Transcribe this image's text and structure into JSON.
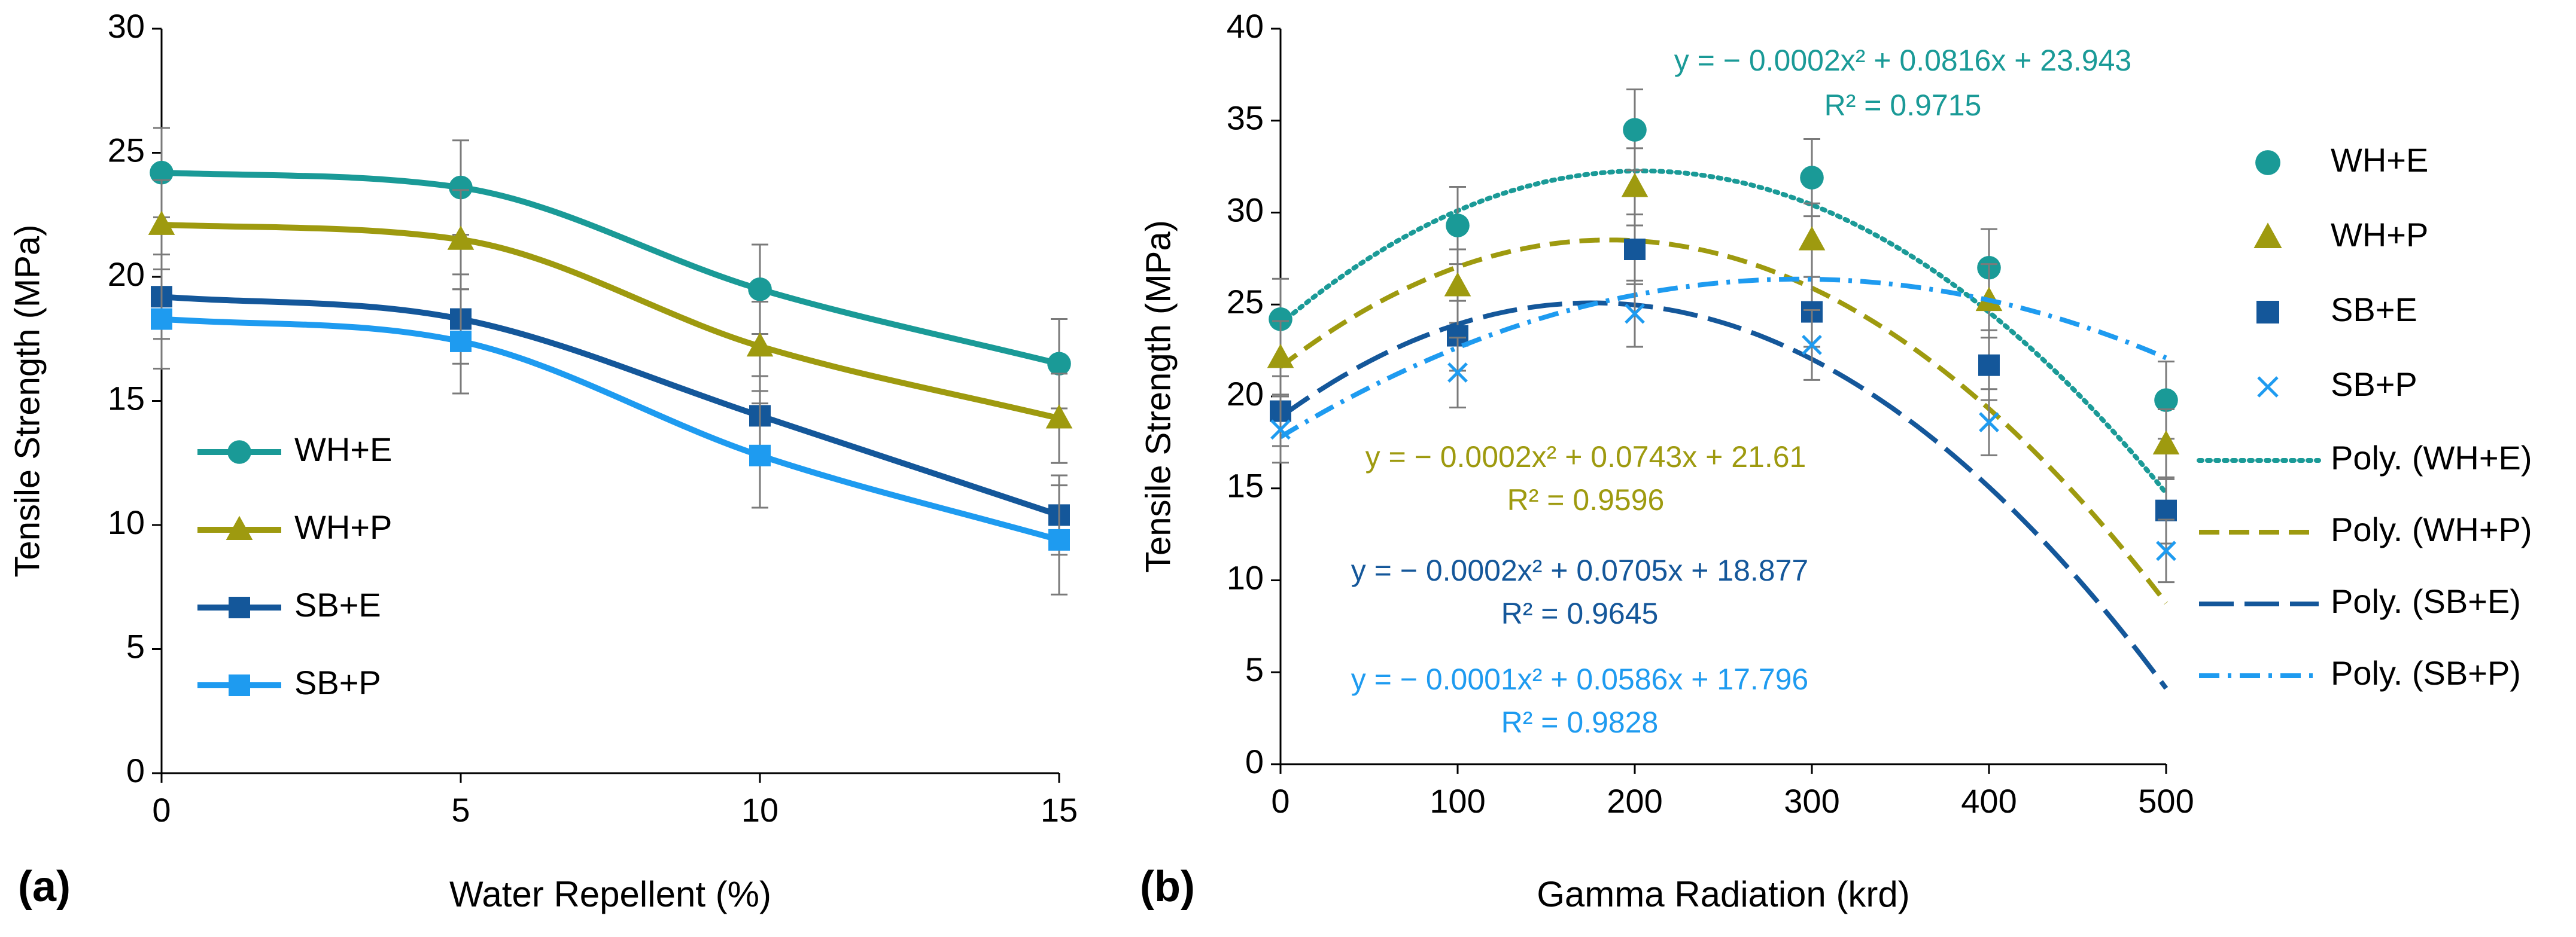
{
  "colors": {
    "wh_e": "#1A9A97",
    "wh_p": "#9E9A0F",
    "sb_e": "#14579A",
    "sb_p": "#1E9BF0",
    "axis": "#000000",
    "error": "#7A7A7A"
  },
  "chart_data": [
    {
      "type": "line",
      "panel_label": "(a)",
      "title": "",
      "xlabel": "Water Repellent (%)",
      "ylabel": "Tensile Strength (MPa)",
      "xlim": [
        0,
        15
      ],
      "ylim": [
        0,
        30
      ],
      "xticks": [
        "0",
        "5",
        "10",
        "15"
      ],
      "yticks": [
        "0",
        "5",
        "10",
        "15",
        "20",
        "25",
        "30"
      ],
      "legend_position": "bottom-left",
      "x": [
        0,
        5,
        10,
        15
      ],
      "series": [
        {
          "name": "WH+E",
          "marker": "circle",
          "values": [
            24.2,
            23.6,
            19.5,
            16.5
          ],
          "errors": [
            1.8,
            1.9,
            1.8,
            1.8
          ]
        },
        {
          "name": "WH+P",
          "marker": "triangle",
          "values": [
            22.1,
            21.5,
            17.2,
            14.3
          ],
          "errors": [
            1.8,
            2.0,
            1.8,
            1.8
          ]
        },
        {
          "name": "SB+E",
          "marker": "square",
          "values": [
            19.2,
            18.3,
            14.4,
            10.4
          ],
          "errors": [
            1.7,
            1.8,
            1.6,
            1.6
          ]
        },
        {
          "name": "SB+P",
          "marker": "square",
          "values": [
            18.3,
            17.4,
            12.8,
            9.4
          ],
          "errors": [
            2.0,
            2.1,
            2.1,
            2.2
          ]
        }
      ]
    },
    {
      "type": "scatter",
      "panel_label": "(b)",
      "title": "",
      "xlabel": "Gamma Radiation (krd)",
      "ylabel": "Tensile Strength (MPa)",
      "xlim": [
        0,
        500
      ],
      "ylim": [
        0,
        40
      ],
      "xticks": [
        "0",
        "100",
        "200",
        "300",
        "400",
        "500"
      ],
      "yticks": [
        "0",
        "5",
        "10",
        "15",
        "20",
        "25",
        "30",
        "35",
        "40"
      ],
      "legend_position": "right",
      "x": [
        0,
        100,
        200,
        300,
        400,
        500
      ],
      "series": [
        {
          "name": "WH+E",
          "marker": "circle",
          "values": [
            24.2,
            29.3,
            34.5,
            31.9,
            27.0,
            19.8
          ],
          "errors": [
            2.2,
            2.1,
            2.2,
            2.1,
            2.1,
            2.1
          ],
          "trend_name": "Poly. (WH+E)",
          "trend_style": "dotted",
          "trend_coef": [
            -0.0002,
            0.0816,
            23.943
          ],
          "equation": "y = − 0.0002x² + 0.0816x + 23.943",
          "r2": "R² = 0.9715"
        },
        {
          "name": "WH+P",
          "marker": "triangle",
          "values": [
            22.1,
            26.0,
            31.4,
            28.5,
            25.2,
            17.4
          ],
          "errors": [
            2.0,
            2.0,
            2.1,
            2.0,
            2.0,
            1.9
          ],
          "trend_name": "Poly. (WH+P)",
          "trend_style": "dashed",
          "trend_coef": [
            -0.0002,
            0.0743,
            21.61
          ],
          "equation": "y = − 0.0002x² + 0.0743x + 21.61",
          "r2": "R² = 0.9596"
        },
        {
          "name": "SB+E",
          "marker": "square",
          "values": [
            19.2,
            23.3,
            28.0,
            24.6,
            21.7,
            13.8
          ],
          "errors": [
            1.9,
            1.9,
            1.9,
            1.9,
            1.9,
            1.8
          ],
          "trend_name": "Poly. (SB+E)",
          "trend_style": "longdash",
          "trend_coef": [
            -0.0002,
            0.0705,
            18.877
          ],
          "equation": "y = − 0.0002x² + 0.0705x + 18.877",
          "r2": "R² = 0.9645"
        },
        {
          "name": "SB+P",
          "marker": "cross",
          "values": [
            18.2,
            21.3,
            24.5,
            22.8,
            18.6,
            11.6
          ],
          "errors": [
            1.8,
            1.9,
            1.8,
            1.9,
            1.8,
            1.7
          ],
          "trend_name": "Poly. (SB+P)",
          "trend_style": "dashdot",
          "trend_coef": [
            -0.0001,
            0.0586,
            17.796
          ],
          "equation": "y = − 0.0001x² + 0.0586x + 17.796",
          "r2": "R² = 0.9828"
        }
      ]
    }
  ]
}
